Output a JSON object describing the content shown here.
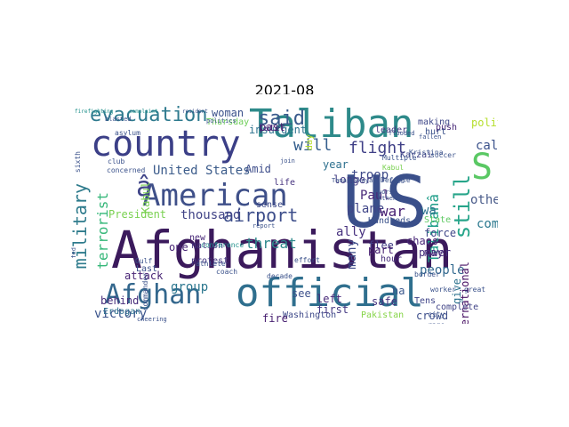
{
  "title": "2021-08",
  "words": [
    {
      "text": "Afghanistan",
      "color": "#3b1a5c"
    },
    {
      "text": "US",
      "color": "#3a4f8a"
    },
    {
      "text": "official",
      "color": "#2f6f8e"
    },
    {
      "text": "country",
      "color": "#3b3f87"
    },
    {
      "text": "Taliban",
      "color": "#2e8a8a"
    },
    {
      "text": "American",
      "color": "#3f5089"
    },
    {
      "text": "Afghan",
      "color": "#33678d"
    },
    {
      "text": "evacuation",
      "color": "#2e7a8e"
    },
    {
      "text": "said",
      "color": "#3a5a8c"
    },
    {
      "text": "â",
      "color": "#3f4488"
    },
    {
      "text": "S",
      "color": "#5ac864"
    },
    {
      "text": "airport",
      "color": "#3c4d8a"
    },
    {
      "text": "military",
      "color": "#2e7b8c"
    },
    {
      "text": "will",
      "color": "#345e8d"
    },
    {
      "text": "still",
      "color": "#27a58a"
    },
    {
      "text": "flight",
      "color": "#404087"
    },
    {
      "text": "United States",
      "color": "#3c5c8b"
    },
    {
      "text": "President",
      "color": "#7ad151"
    },
    {
      "text": "thousand",
      "color": "#414487"
    },
    {
      "text": "threat",
      "color": "#2e8a8c"
    },
    {
      "text": "Paul",
      "color": "#482878"
    },
    {
      "text": "plane",
      "color": "#404688"
    },
    {
      "text": "war",
      "color": "#482173"
    },
    {
      "text": "troop",
      "color": "#3e4a89"
    },
    {
      "text": "people",
      "color": "#31688e"
    },
    {
      "text": "Talibanâ",
      "color": "#1f9e89"
    },
    {
      "text": "terrorist",
      "color": "#35b779"
    },
    {
      "text": "victory",
      "color": "#3a548c"
    },
    {
      "text": "group",
      "color": "#2a768e"
    },
    {
      "text": "Kabul",
      "color": "#7ad151"
    },
    {
      "text": "woman",
      "color": "#3b518b"
    },
    {
      "text": "Thursday",
      "color": "#6ece58"
    },
    {
      "text": "insurgent",
      "color": "#2c728e"
    },
    {
      "text": "year",
      "color": "#2d708e"
    },
    {
      "text": "Amid",
      "color": "#3d4d8a"
    },
    {
      "text": "Later",
      "color": "#472f7d"
    },
    {
      "text": "day",
      "color": "#b5de2b"
    },
    {
      "text": "ally",
      "color": "#46307e"
    },
    {
      "text": "flee",
      "color": "#433e85"
    },
    {
      "text": "chaos",
      "color": "#482677"
    },
    {
      "text": "attack",
      "color": "#482475"
    },
    {
      "text": "Washington",
      "color": "#3e4989"
    },
    {
      "text": "Pakistan",
      "color": "#86d549"
    },
    {
      "text": "International",
      "color": "#471063"
    },
    {
      "text": "force",
      "color": "#3f4788"
    },
    {
      "text": "come",
      "color": "#2a788e"
    },
    {
      "text": "others",
      "color": "#4a5c8a"
    },
    {
      "text": "called",
      "color": "#3b528b"
    },
    {
      "text": "longer",
      "color": "#433d84"
    },
    {
      "text": "many",
      "color": "#3e4c8a"
    },
    {
      "text": "left",
      "color": "#482979"
    },
    {
      "text": "see",
      "color": "#3c508b"
    },
    {
      "text": "first",
      "color": "#443983"
    },
    {
      "text": "safe",
      "color": "#46337f"
    },
    {
      "text": "fire",
      "color": "#482071"
    },
    {
      "text": "Hundreds",
      "color": "#3b528b"
    },
    {
      "text": "part",
      "color": "#482173"
    },
    {
      "text": "hour",
      "color": "#472c7a"
    },
    {
      "text": "power",
      "color": "#46307e"
    },
    {
      "text": "crowd",
      "color": "#3d4e8a"
    },
    {
      "text": "complete",
      "color": "#414487"
    },
    {
      "text": "give",
      "color": "#2c728e"
    },
    {
      "text": "may",
      "color": "#472a7a"
    },
    {
      "text": "State",
      "color": "#5ec962"
    },
    {
      "text": "wa",
      "color": "#2c738e"
    },
    {
      "text": "ha",
      "color": "#39568c"
    },
    {
      "text": "Tens",
      "color": "#404588"
    },
    {
      "text": "behind",
      "color": "#472d7b"
    },
    {
      "text": "Erdogan",
      "color": "#2e6f8e"
    },
    {
      "text": "Last",
      "color": "#3c4f8a"
    },
    {
      "text": "one",
      "color": "#482576"
    },
    {
      "text": "protest",
      "color": "#453781"
    },
    {
      "text": "nation",
      "color": "#443a83"
    },
    {
      "text": "new",
      "color": "#482878"
    },
    {
      "text": "sense",
      "color": "#3e4a89"
    },
    {
      "text": "life",
      "color": "#46337f"
    },
    {
      "text": "past",
      "color": "#481c6e"
    },
    {
      "text": "Karzai",
      "color": "#414487"
    },
    {
      "text": "leader",
      "color": "#453882"
    },
    {
      "text": "making",
      "color": "#3f4889"
    },
    {
      "text": "push",
      "color": "#482878"
    },
    {
      "text": "hurt",
      "color": "#3b528b"
    },
    {
      "text": "politician",
      "color": "#b5de2b"
    },
    {
      "text": "firefighting",
      "color": "#21918c"
    },
    {
      "text": "complaint",
      "color": "#21918c"
    },
    {
      "text": "resident",
      "color": "#3b528b"
    },
    {
      "text": "commander",
      "color": "#3b528b"
    },
    {
      "text": "Gulf",
      "color": "#3b528b"
    },
    {
      "text": "continued",
      "color": "#3b528b"
    },
    {
      "text": "athlete",
      "color": "#3b528b"
    },
    {
      "text": "coach",
      "color": "#3b528b"
    },
    {
      "text": "decade",
      "color": "#3b528b"
    },
    {
      "text": "Greece",
      "color": "#3b528b"
    },
    {
      "text": "soccer",
      "color": "#3b528b"
    },
    {
      "text": "border",
      "color": "#3b528b"
    },
    {
      "text": "worker",
      "color": "#3b528b"
    },
    {
      "text": "great",
      "color": "#3b528b"
    },
    {
      "text": "city",
      "color": "#3b528b"
    },
    {
      "text": "rage",
      "color": "#3b528b"
    },
    {
      "text": "club",
      "color": "#3b528b"
    },
    {
      "text": "Tayyip",
      "color": "#3b528b"
    },
    {
      "text": "politics",
      "color": "#3b528b"
    },
    {
      "text": "flooded",
      "color": "#3b528b"
    },
    {
      "text": "fallen",
      "color": "#3b528b"
    },
    {
      "text": "sixth",
      "color": "#3b528b"
    },
    {
      "text": "asylum",
      "color": "#3b528b"
    },
    {
      "text": "conference",
      "color": "#21918c"
    },
    {
      "text": "concerned",
      "color": "#3b528b"
    },
    {
      "text": "effort",
      "color": "#3b528b"
    },
    {
      "text": "join",
      "color": "#3b528b"
    },
    {
      "text": "Tamanovkaya",
      "color": "#3b528b"
    },
    {
      "text": "Less",
      "color": "#3b528b"
    },
    {
      "text": "blasted",
      "color": "#3b528b"
    },
    {
      "text": "Multiple",
      "color": "#3b528b"
    },
    {
      "text": "Kristina",
      "color": "#3b528b"
    },
    {
      "text": "Kabul",
      "color": "#7ad151"
    },
    {
      "text": "Defense",
      "color": "#3b528b"
    },
    {
      "text": "worst",
      "color": "#3b528b"
    },
    {
      "text": "Athens",
      "color": "#3b528b"
    },
    {
      "text": "sending",
      "color": "#3b528b"
    },
    {
      "text": "project",
      "color": "#3b528b"
    },
    {
      "text": "report",
      "color": "#3b528b"
    },
    {
      "text": "loosed",
      "color": "#3b528b"
    },
    {
      "text": "cheering",
      "color": "#3b528b"
    },
    {
      "text": "crumbling",
      "color": "#3b528b"
    },
    {
      "text": "fed",
      "color": "#3b528b"
    },
    {
      "text": "Pakistanis",
      "color": "#3b528b"
    },
    {
      "text": "legal",
      "color": "#3b528b"
    },
    {
      "text": "whose",
      "color": "#3b528b"
    },
    {
      "text": "radical",
      "color": "#3b528b"
    }
  ]
}
